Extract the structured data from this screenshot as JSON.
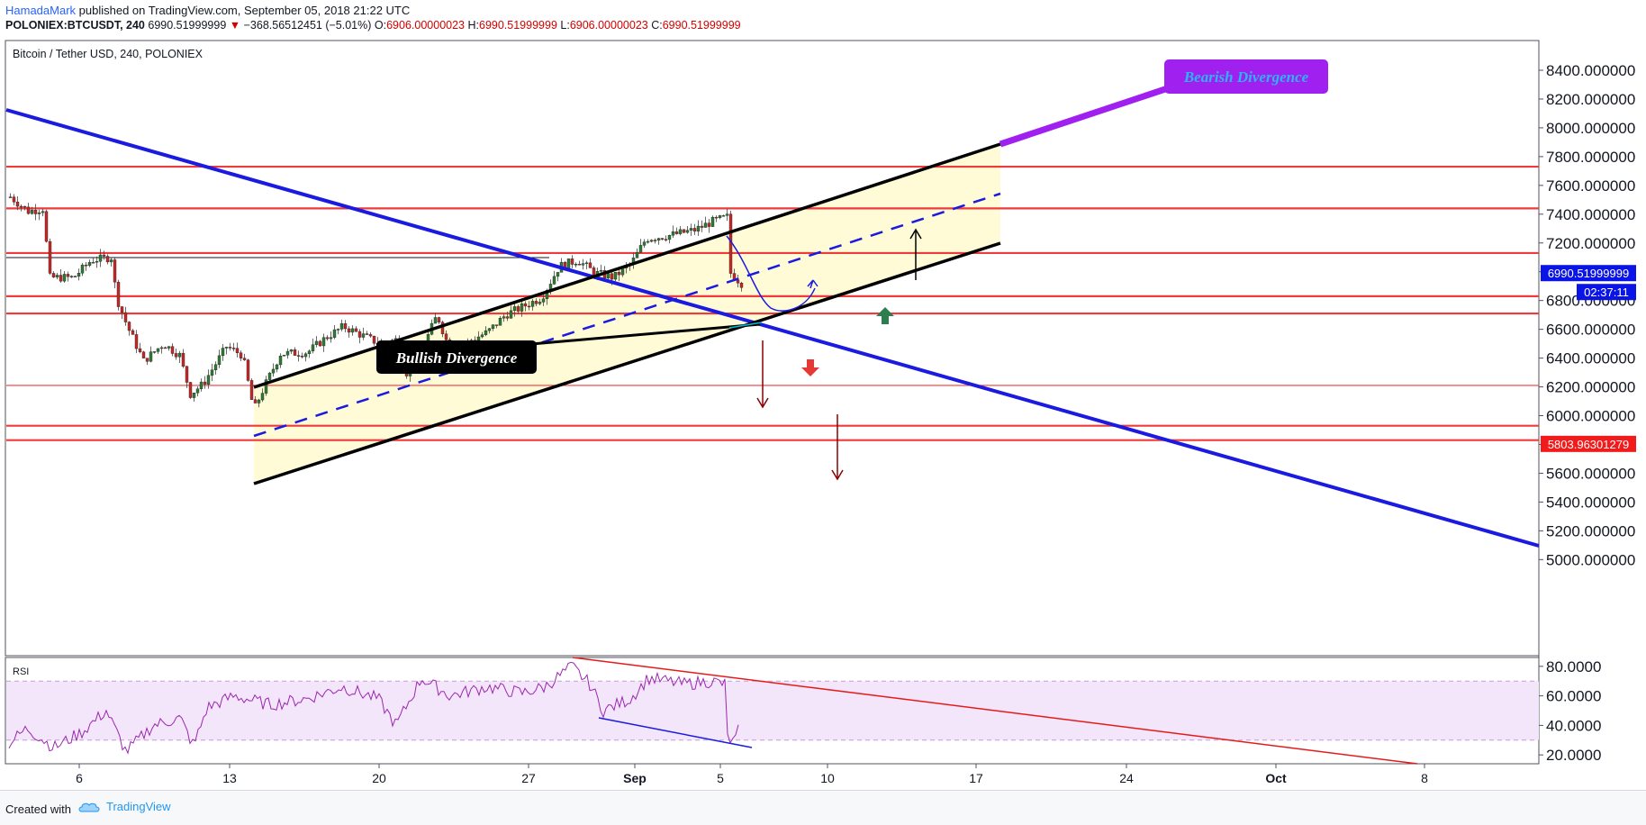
{
  "header": {
    "author": "HamadaMark",
    "published_text": "published on TradingView.com, September 05, 2018 21:22 UTC",
    "symbol": "POLONIEX:BTCUSDT, 240",
    "last": "6990.51999999",
    "change": "−368.56512451 (−5.01%)",
    "open_label": "O:",
    "open": "6906.00000023",
    "high_label": "H:",
    "high": "6990.51999999",
    "low_label": "L:",
    "low": "6906.00000023",
    "close_label": "C:",
    "close": "6990.51999999"
  },
  "chart_title": "Bitcoin / Tether USD, 240, POLONIEX",
  "annotations": {
    "bearish": "Bearish Divergence",
    "bullish": "Bullish Divergence"
  },
  "price_labels": {
    "current": "6990.51999999",
    "countdown": "02:37:11",
    "support": "5803.96301279"
  },
  "rsi_label": "RSI",
  "footer": {
    "created_with": "Created with",
    "brand": "TradingView"
  },
  "colors": {
    "resistance": "#ef3b3b",
    "trendline": "#1a1ae0",
    "channel_fill": "#fffbd6",
    "bearish": "#a020f0",
    "rsi_line": "#9c27b0",
    "rsi_band": "#f3e5fa"
  },
  "chart_data": {
    "type": "candlestick",
    "x_ticks": [
      "6",
      "13",
      "20",
      "27",
      "Sep",
      "5",
      "10",
      "17",
      "24",
      "Oct",
      "8"
    ],
    "y_ticks": [
      8400,
      8200,
      8000,
      7800,
      7600,
      7400,
      7200,
      7000,
      6800,
      6600,
      6400,
      6200,
      6000,
      5800,
      5600,
      5400,
      5200,
      5000
    ],
    "y_tick_labels": [
      "8400.000000",
      "8200.000000",
      "8000.000000",
      "7800.000000",
      "7600.000000",
      "7400.000000",
      "7200.000000",
      "7000.000000",
      "6800.000000",
      "6600.000000",
      "6400.000000",
      "6200.000000",
      "6000.000000",
      "5800.000000",
      "5600.000000",
      "5400.000000",
      "5200.000000",
      "5000.000000"
    ],
    "ylim": [
      4900,
      8500
    ],
    "horizontal_levels": [
      7730,
      7440,
      7130,
      6830,
      6710,
      6210,
      5930,
      5830
    ],
    "last_price": 6990.52,
    "support_price": 5803.96,
    "rsi": {
      "y_ticks": [
        80,
        60,
        40,
        20
      ],
      "y_tick_labels": [
        "80.0000",
        "60.0000",
        "40.0000",
        "20.0000"
      ],
      "ylim": [
        14,
        86
      ],
      "band": [
        30,
        70
      ],
      "last": 40
    }
  }
}
